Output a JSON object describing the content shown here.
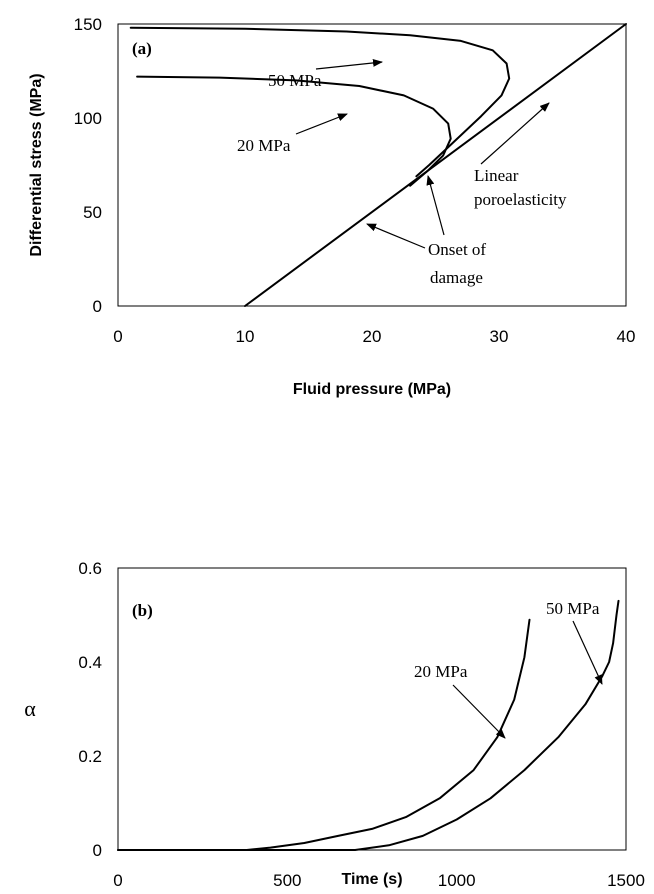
{
  "chart_data": [
    {
      "type": "line",
      "panel_label": "(a)",
      "xlabel": "Fluid pressure (MPa)",
      "ylabel": "Differential stress (MPa)",
      "xlim": [
        0,
        40
      ],
      "ylim": [
        0,
        150
      ],
      "x_ticks": [
        "0",
        "10",
        "20",
        "30",
        "40"
      ],
      "y_ticks": [
        "0",
        "50",
        "100",
        "150"
      ],
      "grid": false,
      "series": [
        {
          "name": "50 MPa",
          "points": [
            [
              1,
              148
            ],
            [
              10,
              147.5
            ],
            [
              18,
              146
            ],
            [
              23,
              144
            ],
            [
              27,
              141
            ],
            [
              29.5,
              136
            ],
            [
              30.6,
              129
            ],
            [
              30.8,
              121
            ],
            [
              30.2,
              112
            ],
            [
              28.6,
              101
            ],
            [
              26.4,
              87
            ],
            [
              24.5,
              75
            ],
            [
              23.5,
              69
            ]
          ]
        },
        {
          "name": "20 MPa",
          "points": [
            [
              1.5,
              122
            ],
            [
              8,
              121.5
            ],
            [
              14,
              120
            ],
            [
              19,
              117
            ],
            [
              22.5,
              112
            ],
            [
              24.8,
              105
            ],
            [
              26,
              97
            ],
            [
              26.2,
              89
            ],
            [
              25.6,
              80
            ],
            [
              24.4,
              72
            ],
            [
              23,
              64
            ]
          ]
        },
        {
          "name": "Linear poroelasticity",
          "points": [
            [
              10,
              0
            ],
            [
              40,
              150
            ]
          ]
        }
      ],
      "annotations": [
        {
          "text": "50 MPa",
          "points_to": [
            26,
            145
          ]
        },
        {
          "text": "20 MPa",
          "points_to": [
            21,
            118
          ]
        },
        {
          "text": "Linear poroelasticity",
          "points_to": [
            35.5,
            124
          ]
        },
        {
          "text": "Onset of damage",
          "points_to": [
            [
              18.5,
              46
            ],
            [
              24.5,
              65
            ]
          ]
        }
      ]
    },
    {
      "type": "line",
      "panel_label": "(b)",
      "xlabel": "Time (s)",
      "ylabel": "α",
      "xlim": [
        0,
        1500
      ],
      "ylim": [
        0,
        0.6
      ],
      "x_ticks": [
        "0",
        "500",
        "1000",
        "1500"
      ],
      "y_ticks": [
        "0",
        "0.2",
        "0.4",
        "0.6"
      ],
      "grid": false,
      "series": [
        {
          "name": "20 MPa",
          "points": [
            [
              0,
              0
            ],
            [
              380,
              0
            ],
            [
              450,
              0.005
            ],
            [
              550,
              0.015
            ],
            [
              650,
              0.03
            ],
            [
              750,
              0.045
            ],
            [
              850,
              0.07
            ],
            [
              950,
              0.11
            ],
            [
              1050,
              0.17
            ],
            [
              1120,
              0.24
            ],
            [
              1170,
              0.32
            ],
            [
              1200,
              0.41
            ],
            [
              1215,
              0.49
            ]
          ]
        },
        {
          "name": "50 MPa",
          "points": [
            [
              0,
              0
            ],
            [
              700,
              0
            ],
            [
              800,
              0.01
            ],
            [
              900,
              0.03
            ],
            [
              1000,
              0.065
            ],
            [
              1100,
              0.11
            ],
            [
              1200,
              0.17
            ],
            [
              1300,
              0.24
            ],
            [
              1380,
              0.31
            ],
            [
              1430,
              0.37
            ],
            [
              1450,
              0.4
            ],
            [
              1462,
              0.44
            ],
            [
              1472,
              0.5
            ],
            [
              1478,
              0.53
            ]
          ]
        }
      ],
      "annotations": [
        {
          "text": "20 MPa",
          "points_to": [
            1140,
            0.3
          ]
        },
        {
          "text": "50 MPa",
          "points_to": [
            1440,
            0.39
          ]
        }
      ]
    }
  ]
}
